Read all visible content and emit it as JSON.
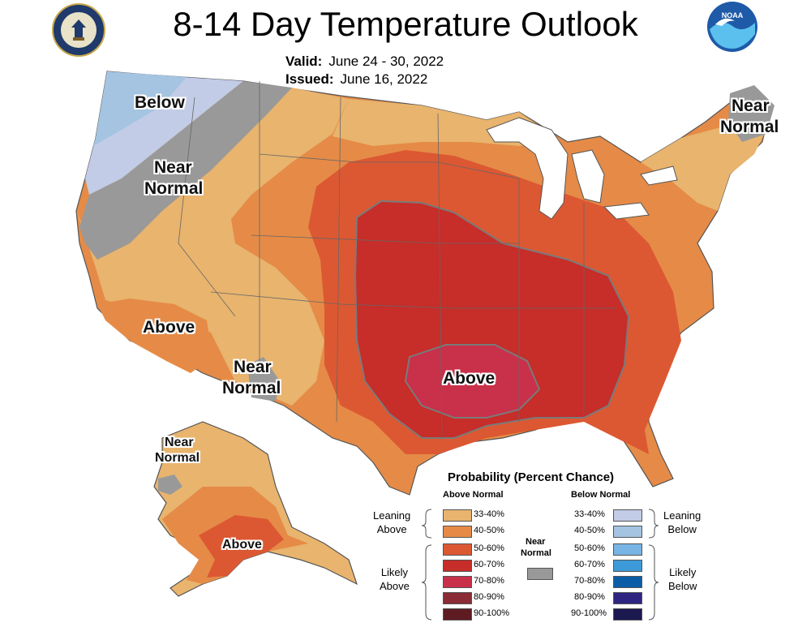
{
  "header": {
    "title": "8-14 Day Temperature Outlook",
    "valid_label": "Valid:",
    "valid_value": "June 24 - 30, 2022",
    "issued_label": "Issued:",
    "issued_value": "June 16, 2022",
    "left_logo": "department-of-commerce-seal",
    "right_logo": "noaa-logo",
    "right_logo_text": "NOAA"
  },
  "map_labels": {
    "nw_below": "Below",
    "nw_near_1": "Near",
    "nw_near_2": "Normal",
    "sw_above": "Above",
    "sw_near_1": "Near",
    "sw_near_2": "Normal",
    "ne_near_1": "Near",
    "ne_near_2": "Normal",
    "south_above": "Above",
    "ak_near_1": "Near",
    "ak_near_2": "Normal",
    "ak_above": "Above"
  },
  "legend": {
    "title": "Probability (Percent Chance)",
    "above_header": "Above Normal",
    "below_header": "Below Normal",
    "near_label_1": "Near",
    "near_label_2": "Normal",
    "leaning_above_1": "Leaning",
    "leaning_above_2": "Above",
    "likely_above_1": "Likely",
    "likely_above_2": "Above",
    "leaning_below_1": "Leaning",
    "leaning_below_2": "Below",
    "likely_below_1": "Likely",
    "likely_below_2": "Below",
    "above_items": [
      {
        "label": "33-40%",
        "color": "#e8b46e"
      },
      {
        "label": "40-50%",
        "color": "#e58b47"
      },
      {
        "label": "50-60%",
        "color": "#dc5832"
      },
      {
        "label": "60-70%",
        "color": "#c72d29"
      },
      {
        "label": "70-80%",
        "color": "#c9304a"
      },
      {
        "label": "80-90%",
        "color": "#8a2b35"
      },
      {
        "label": "90-100%",
        "color": "#5e1c22"
      }
    ],
    "below_items": [
      {
        "label": "33-40%",
        "color": "#c2cce6"
      },
      {
        "label": "40-50%",
        "color": "#a4c4e2"
      },
      {
        "label": "50-60%",
        "color": "#78b4e4"
      },
      {
        "label": "60-70%",
        "color": "#3c9ad8"
      },
      {
        "label": "70-80%",
        "color": "#0b5da7"
      },
      {
        "label": "80-90%",
        "color": "#2d2581"
      },
      {
        "label": "90-100%",
        "color": "#1c1850"
      }
    ],
    "near_color": "#999999"
  },
  "colors": {
    "lake": "#ffffff",
    "boundary": "#555555",
    "outline": "#7a7a7a"
  }
}
